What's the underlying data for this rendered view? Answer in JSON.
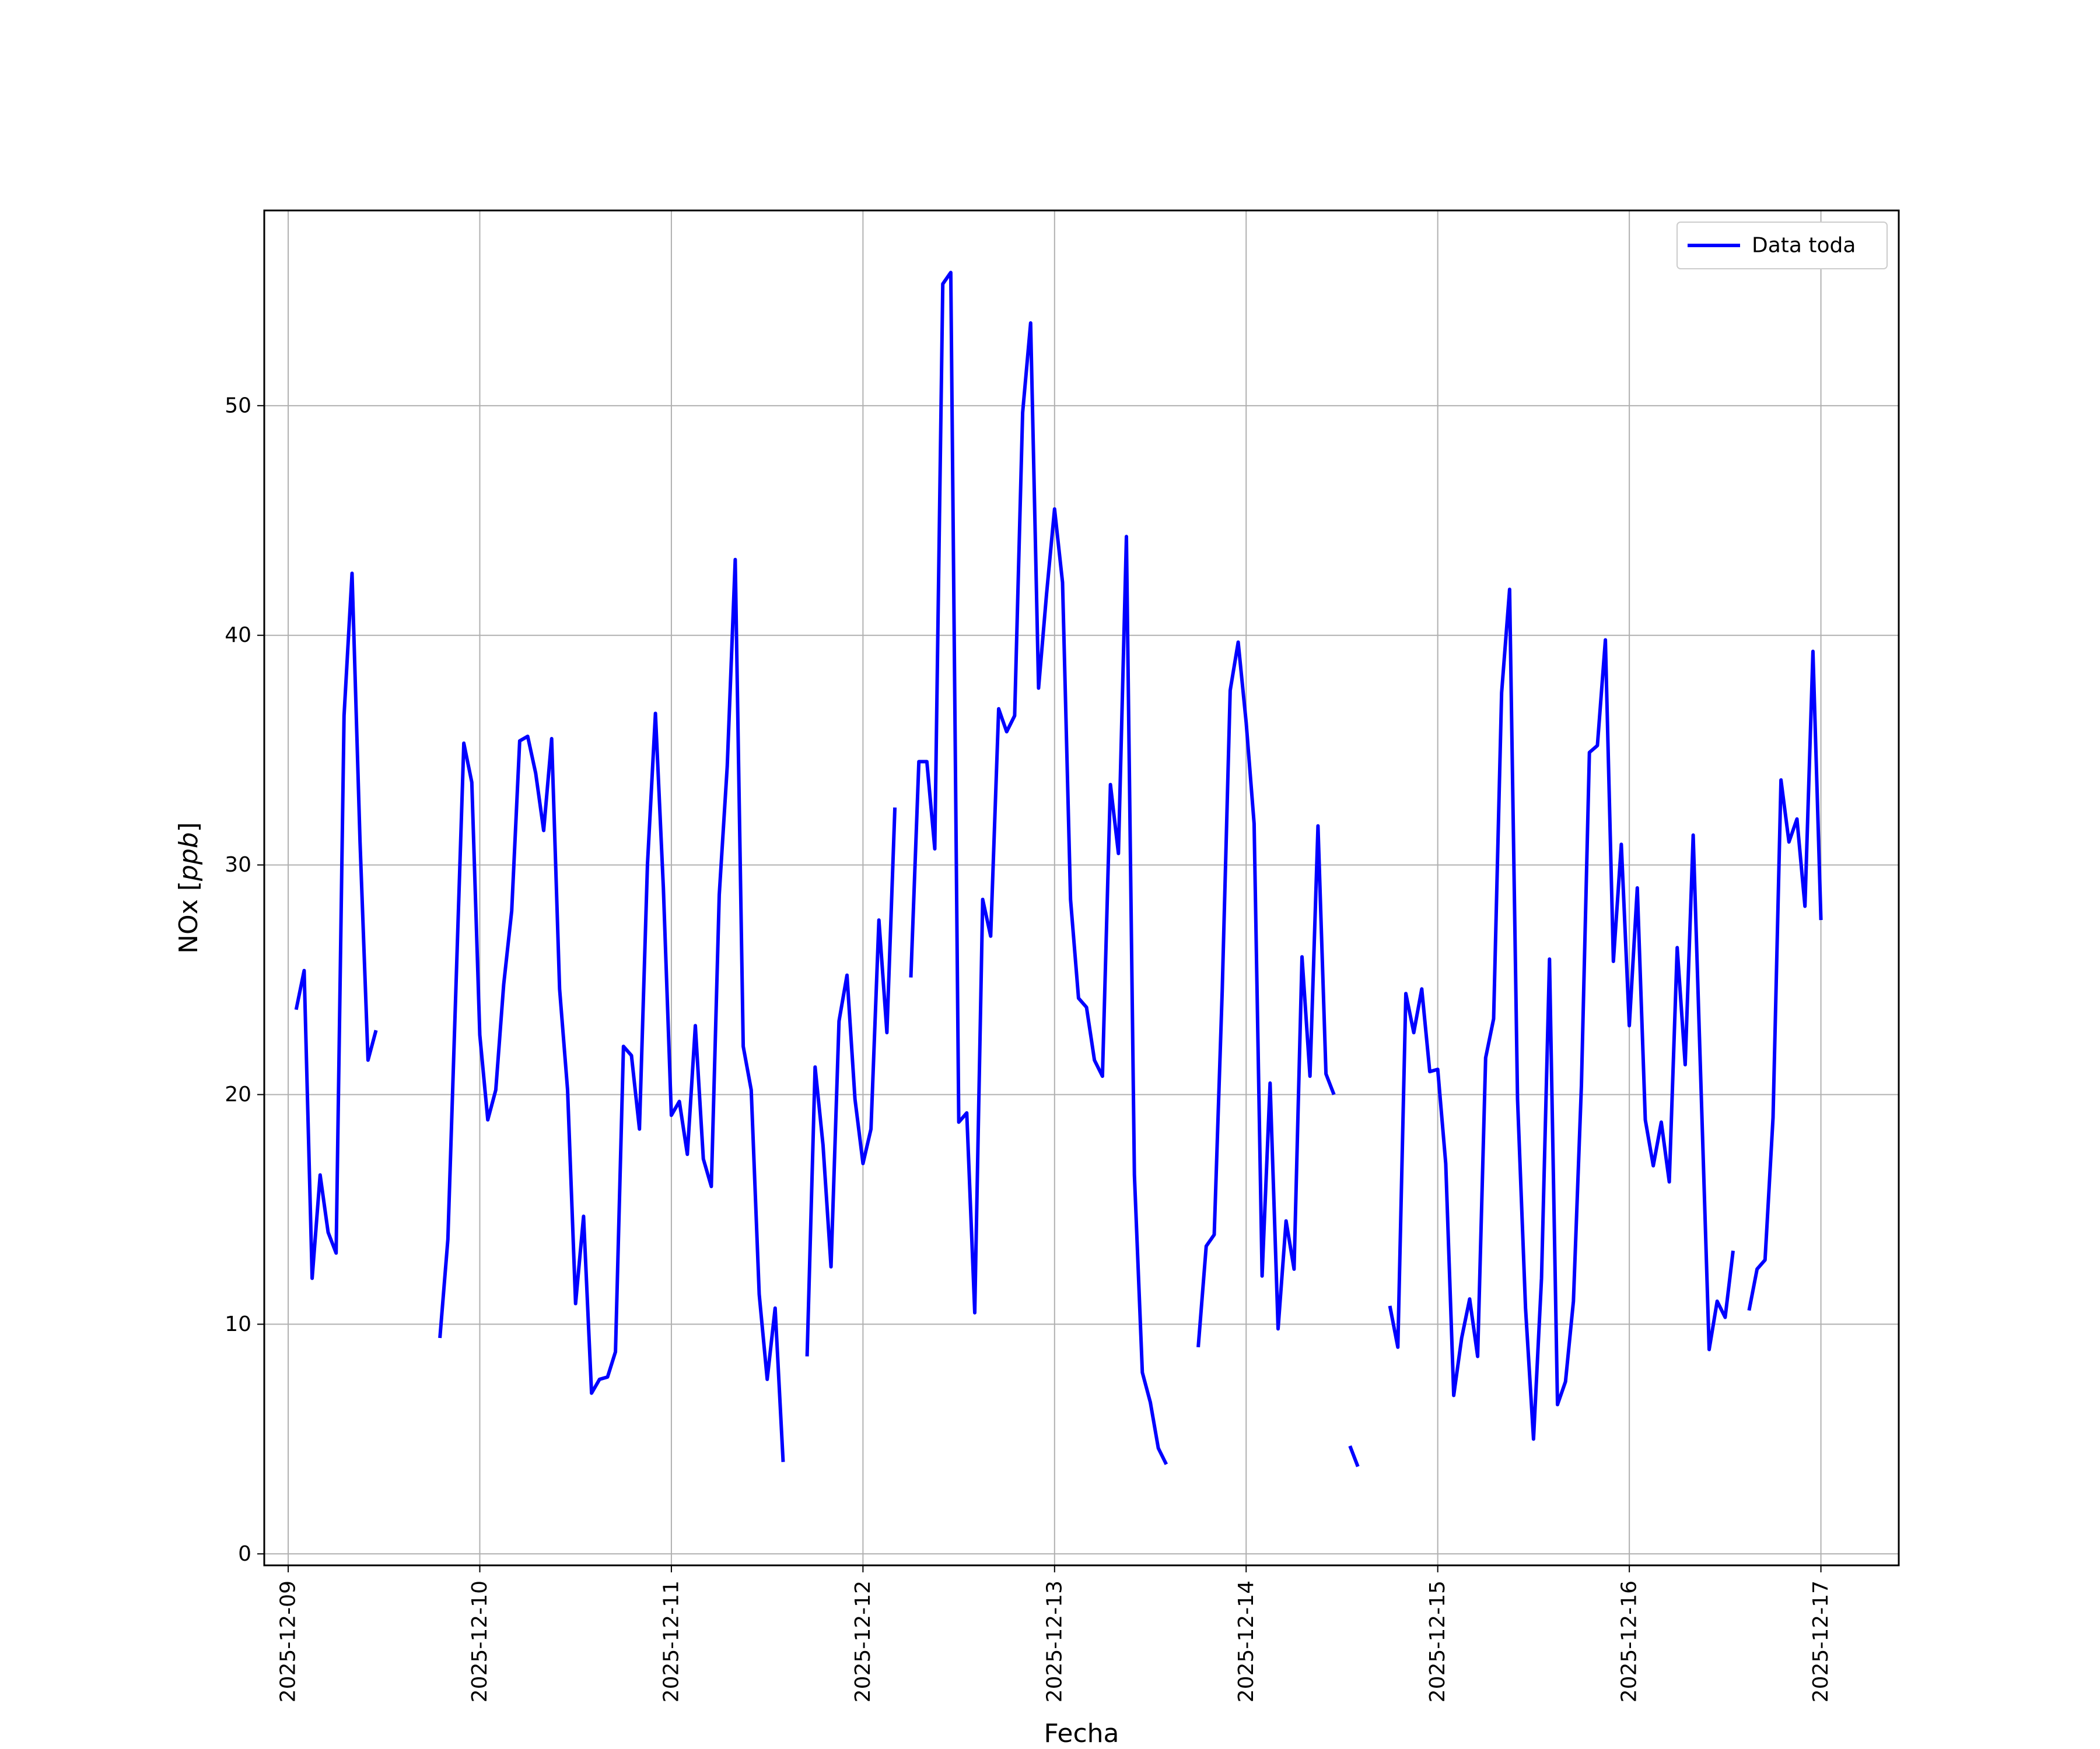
{
  "chart_data": {
    "type": "line",
    "xlabel": "Fecha",
    "ylabel": "NOx [ppb]",
    "ylabel_parts": {
      "prefix": "NOx [",
      "unit": "ppb",
      "suffix": "]"
    },
    "xlim": [
      "2025-12-08T21:00",
      "2025-12-17T09:45"
    ],
    "ylim": [
      -0.5,
      58.5
    ],
    "x_ticks": [
      "2025-12-09",
      "2025-12-10",
      "2025-12-11",
      "2025-12-12",
      "2025-12-13",
      "2025-12-14",
      "2025-12-15",
      "2025-12-16",
      "2025-12-17"
    ],
    "y_ticks": [
      0,
      10,
      20,
      30,
      40,
      50
    ],
    "grid": true,
    "legend_position": "top-right",
    "series": [
      {
        "name": "Data toda",
        "color": "#0000ff",
        "segments": [
          [
            [
              "2025-12-09T01:00",
              23.7
            ],
            [
              "2025-12-09T02:00",
              25.4
            ],
            [
              "2025-12-09T03:00",
              12.0
            ],
            [
              "2025-12-09T04:00",
              16.5
            ],
            [
              "2025-12-09T05:00",
              14.0
            ],
            [
              "2025-12-09T06:00",
              13.1
            ],
            [
              "2025-12-09T07:00",
              36.5
            ],
            [
              "2025-12-09T08:00",
              42.7
            ],
            [
              "2025-12-09T09:00",
              31.0
            ],
            [
              "2025-12-09T10:00",
              21.5
            ],
            [
              "2025-12-09T11:00",
              22.8
            ]
          ],
          [
            [
              "2025-12-09T19:00",
              9.4
            ],
            [
              "2025-12-09T20:00",
              13.7
            ],
            [
              "2025-12-09T21:00",
              24.5
            ],
            [
              "2025-12-09T22:00",
              35.3
            ],
            [
              "2025-12-09T23:00",
              33.6
            ],
            [
              "2025-12-10T00:00",
              22.6
            ],
            [
              "2025-12-10T01:00",
              18.9
            ],
            [
              "2025-12-10T02:00",
              20.2
            ],
            [
              "2025-12-10T03:00",
              24.8
            ],
            [
              "2025-12-10T04:00",
              28.0
            ],
            [
              "2025-12-10T05:00",
              35.4
            ],
            [
              "2025-12-10T06:00",
              35.6
            ],
            [
              "2025-12-10T07:00",
              34.0
            ],
            [
              "2025-12-10T08:00",
              31.5
            ],
            [
              "2025-12-10T09:00",
              35.5
            ],
            [
              "2025-12-10T10:00",
              24.6
            ],
            [
              "2025-12-10T11:00",
              20.2
            ],
            [
              "2025-12-10T12:00",
              10.9
            ],
            [
              "2025-12-10T13:00",
              14.7
            ],
            [
              "2025-12-10T14:00",
              7.0
            ],
            [
              "2025-12-10T15:00",
              7.6
            ],
            [
              "2025-12-10T16:00",
              7.7
            ],
            [
              "2025-12-10T17:00",
              8.8
            ],
            [
              "2025-12-10T18:00",
              22.1
            ],
            [
              "2025-12-10T19:00",
              21.7
            ],
            [
              "2025-12-10T20:00",
              18.5
            ],
            [
              "2025-12-10T21:00",
              30.0
            ],
            [
              "2025-12-10T22:00",
              36.6
            ],
            [
              "2025-12-10T23:00",
              29.0
            ],
            [
              "2025-12-11T00:00",
              19.1
            ],
            [
              "2025-12-11T01:00",
              19.7
            ],
            [
              "2025-12-11T02:00",
              17.4
            ],
            [
              "2025-12-11T03:00",
              23.0
            ],
            [
              "2025-12-11T04:00",
              17.2
            ],
            [
              "2025-12-11T05:00",
              16.0
            ],
            [
              "2025-12-11T06:00",
              28.7
            ],
            [
              "2025-12-11T07:00",
              34.3
            ],
            [
              "2025-12-11T08:00",
              43.3
            ],
            [
              "2025-12-11T09:00",
              22.1
            ],
            [
              "2025-12-11T10:00",
              20.2
            ],
            [
              "2025-12-11T11:00",
              11.3
            ],
            [
              "2025-12-11T12:00",
              7.6
            ],
            [
              "2025-12-11T13:00",
              10.7
            ],
            [
              "2025-12-11T14:00",
              4.0
            ]
          ],
          [
            [
              "2025-12-11T17:00",
              8.6
            ],
            [
              "2025-12-11T18:00",
              21.2
            ],
            [
              "2025-12-11T19:00",
              17.8
            ],
            [
              "2025-12-11T20:00",
              12.5
            ],
            [
              "2025-12-11T21:00",
              23.2
            ],
            [
              "2025-12-11T22:00",
              25.2
            ],
            [
              "2025-12-11T23:00",
              19.8
            ],
            [
              "2025-12-12T00:00",
              17.0
            ],
            [
              "2025-12-12T01:00",
              18.5
            ],
            [
              "2025-12-12T02:00",
              27.6
            ],
            [
              "2025-12-12T03:00",
              22.7
            ],
            [
              "2025-12-12T04:00",
              32.5
            ]
          ],
          [
            [
              "2025-12-12T06:00",
              25.1
            ],
            [
              "2025-12-12T07:00",
              34.5
            ],
            [
              "2025-12-12T08:00",
              34.5
            ],
            [
              "2025-12-12T09:00",
              30.7
            ],
            [
              "2025-12-12T10:00",
              55.3
            ],
            [
              "2025-12-12T11:00",
              55.8
            ],
            [
              "2025-12-12T12:00",
              18.8
            ],
            [
              "2025-12-12T13:00",
              19.2
            ],
            [
              "2025-12-12T14:00",
              10.5
            ],
            [
              "2025-12-12T15:00",
              28.5
            ],
            [
              "2025-12-12T16:00",
              26.9
            ],
            [
              "2025-12-12T17:00",
              36.8
            ],
            [
              "2025-12-12T18:00",
              35.8
            ],
            [
              "2025-12-12T19:00",
              36.5
            ],
            [
              "2025-12-12T20:00",
              49.7
            ],
            [
              "2025-12-12T21:00",
              53.6
            ],
            [
              "2025-12-12T22:00",
              37.7
            ],
            [
              "2025-12-12T23:00",
              41.8
            ],
            [
              "2025-12-13T00:00",
              45.5
            ],
            [
              "2025-12-13T01:00",
              42.3
            ],
            [
              "2025-12-13T02:00",
              28.5
            ],
            [
              "2025-12-13T03:00",
              24.2
            ],
            [
              "2025-12-13T04:00",
              23.8
            ],
            [
              "2025-12-13T05:00",
              21.5
            ],
            [
              "2025-12-13T06:00",
              20.8
            ],
            [
              "2025-12-13T07:00",
              33.5
            ],
            [
              "2025-12-13T08:00",
              30.5
            ],
            [
              "2025-12-13T09:00",
              44.3
            ],
            [
              "2025-12-13T10:00",
              16.5
            ],
            [
              "2025-12-13T11:00",
              7.9
            ],
            [
              "2025-12-13T12:00",
              6.6
            ],
            [
              "2025-12-13T13:00",
              4.6
            ],
            [
              "2025-12-13T14:00",
              3.9
            ]
          ],
          [
            [
              "2025-12-13T18:00",
              9.0
            ],
            [
              "2025-12-13T19:00",
              13.4
            ],
            [
              "2025-12-13T20:00",
              13.9
            ],
            [
              "2025-12-13T21:00",
              24.5
            ],
            [
              "2025-12-13T22:00",
              37.6
            ],
            [
              "2025-12-13T23:00",
              39.7
            ],
            [
              "2025-12-14T00:00",
              36.2
            ],
            [
              "2025-12-14T01:00",
              31.8
            ],
            [
              "2025-12-14T02:00",
              12.1
            ],
            [
              "2025-12-14T03:00",
              20.5
            ],
            [
              "2025-12-14T04:00",
              9.8
            ],
            [
              "2025-12-14T05:00",
              14.5
            ],
            [
              "2025-12-14T06:00",
              12.4
            ],
            [
              "2025-12-14T07:00",
              26.0
            ],
            [
              "2025-12-14T08:00",
              20.8
            ],
            [
              "2025-12-14T09:00",
              31.7
            ],
            [
              "2025-12-14T10:00",
              20.9
            ],
            [
              "2025-12-14T11:00",
              20.0
            ]
          ],
          [
            [
              "2025-12-14T13:00",
              4.7
            ],
            [
              "2025-12-14T14:00",
              3.8
            ]
          ],
          [
            [
              "2025-12-14T18:00",
              10.8
            ],
            [
              "2025-12-14T19:00",
              9.0
            ],
            [
              "2025-12-14T20:00",
              24.4
            ],
            [
              "2025-12-14T21:00",
              22.7
            ],
            [
              "2025-12-14T22:00",
              24.6
            ],
            [
              "2025-12-14T23:00",
              21.0
            ],
            [
              "2025-12-15T00:00",
              21.1
            ],
            [
              "2025-12-15T01:00",
              17.0
            ],
            [
              "2025-12-15T02:00",
              6.9
            ],
            [
              "2025-12-15T03:00",
              9.4
            ],
            [
              "2025-12-15T04:00",
              11.1
            ],
            [
              "2025-12-15T05:00",
              8.6
            ],
            [
              "2025-12-15T06:00",
              21.6
            ],
            [
              "2025-12-15T07:00",
              23.3
            ],
            [
              "2025-12-15T08:00",
              37.5
            ],
            [
              "2025-12-15T09:00",
              42.0
            ],
            [
              "2025-12-15T10:00",
              19.8
            ],
            [
              "2025-12-15T11:00",
              10.7
            ],
            [
              "2025-12-15T12:00",
              5.0
            ],
            [
              "2025-12-15T13:00",
              12.0
            ],
            [
              "2025-12-15T14:00",
              25.9
            ],
            [
              "2025-12-15T15:00",
              6.5
            ],
            [
              "2025-12-15T16:00",
              7.5
            ],
            [
              "2025-12-15T17:00",
              11.0
            ],
            [
              "2025-12-15T18:00",
              20.4
            ],
            [
              "2025-12-15T19:00",
              34.9
            ],
            [
              "2025-12-15T20:00",
              35.2
            ],
            [
              "2025-12-15T21:00",
              39.8
            ],
            [
              "2025-12-15T22:00",
              25.8
            ],
            [
              "2025-12-15T23:00",
              30.9
            ],
            [
              "2025-12-16T00:00",
              23.0
            ],
            [
              "2025-12-16T01:00",
              29.0
            ],
            [
              "2025-12-16T02:00",
              18.9
            ],
            [
              "2025-12-16T03:00",
              16.9
            ],
            [
              "2025-12-16T04:00",
              18.8
            ],
            [
              "2025-12-16T05:00",
              16.2
            ],
            [
              "2025-12-16T06:00",
              26.4
            ],
            [
              "2025-12-16T07:00",
              21.3
            ],
            [
              "2025-12-16T08:00",
              31.3
            ],
            [
              "2025-12-16T09:00",
              20.1
            ],
            [
              "2025-12-16T10:00",
              8.9
            ],
            [
              "2025-12-16T11:00",
              11.0
            ],
            [
              "2025-12-16T12:00",
              10.3
            ],
            [
              "2025-12-16T13:00",
              13.2
            ]
          ],
          [
            [
              "2025-12-16T15:00",
              10.6
            ],
            [
              "2025-12-16T16:00",
              12.4
            ],
            [
              "2025-12-16T17:00",
              12.8
            ],
            [
              "2025-12-16T18:00",
              19.0
            ],
            [
              "2025-12-16T19:00",
              33.7
            ],
            [
              "2025-12-16T20:00",
              31.0
            ],
            [
              "2025-12-16T21:00",
              32.0
            ],
            [
              "2025-12-16T22:00",
              28.2
            ],
            [
              "2025-12-16T23:00",
              39.3
            ],
            [
              "2025-12-17T00:00",
              27.6
            ]
          ]
        ]
      }
    ]
  }
}
